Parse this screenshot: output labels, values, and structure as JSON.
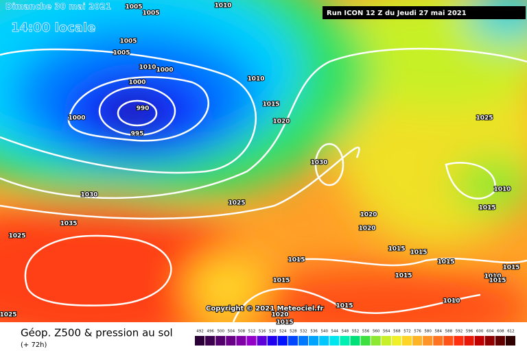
{
  "header": {
    "date": "Dimanche 30 mai 2021",
    "time": "14:00 locale",
    "run": "Run ICON 12 Z du Jeudi 27 mai 2021"
  },
  "copyright": "Copyright © 2021 Meteociel.fr",
  "footer": {
    "title": "Géop. Z500 & pression au sol",
    "lead": "(+ 72h)"
  },
  "isobar_labels": [
    1005,
    1005,
    1010,
    1005,
    1005,
    1010,
    1000,
    1000,
    990,
    1000,
    995,
    1010,
    1015,
    1020,
    1030,
    1025,
    1010,
    1015,
    1030,
    1025,
    1035,
    1025,
    1020,
    1020,
    1015,
    1015,
    1015,
    1015,
    1015,
    1015,
    1015,
    1010,
    1015,
    1015,
    1010,
    1020,
    1015,
    1025
  ],
  "legend": {
    "labels": [
      492,
      496,
      500,
      504,
      508,
      512,
      516,
      520,
      524,
      528,
      532,
      536,
      540,
      544,
      548,
      552,
      556,
      560,
      564,
      568,
      572,
      576,
      580,
      584,
      588,
      592,
      596,
      600,
      604,
      608,
      612
    ],
    "colors": [
      "#2a0036",
      "#3d004f",
      "#52006a",
      "#6a0088",
      "#7f00a6",
      "#9300c8",
      "#5d00d9",
      "#2000ee",
      "#0012ff",
      "#0046ff",
      "#0078ff",
      "#00a4ff",
      "#00c8ff",
      "#00e6ee",
      "#00f0b4",
      "#00e078",
      "#3ee040",
      "#8ce830",
      "#c8f028",
      "#f0f028",
      "#ffd428",
      "#ffb428",
      "#ff9428",
      "#ff7420",
      "#ff5418",
      "#ff3010",
      "#e81808",
      "#c00000",
      "#900000",
      "#600000",
      "#300000"
    ]
  }
}
